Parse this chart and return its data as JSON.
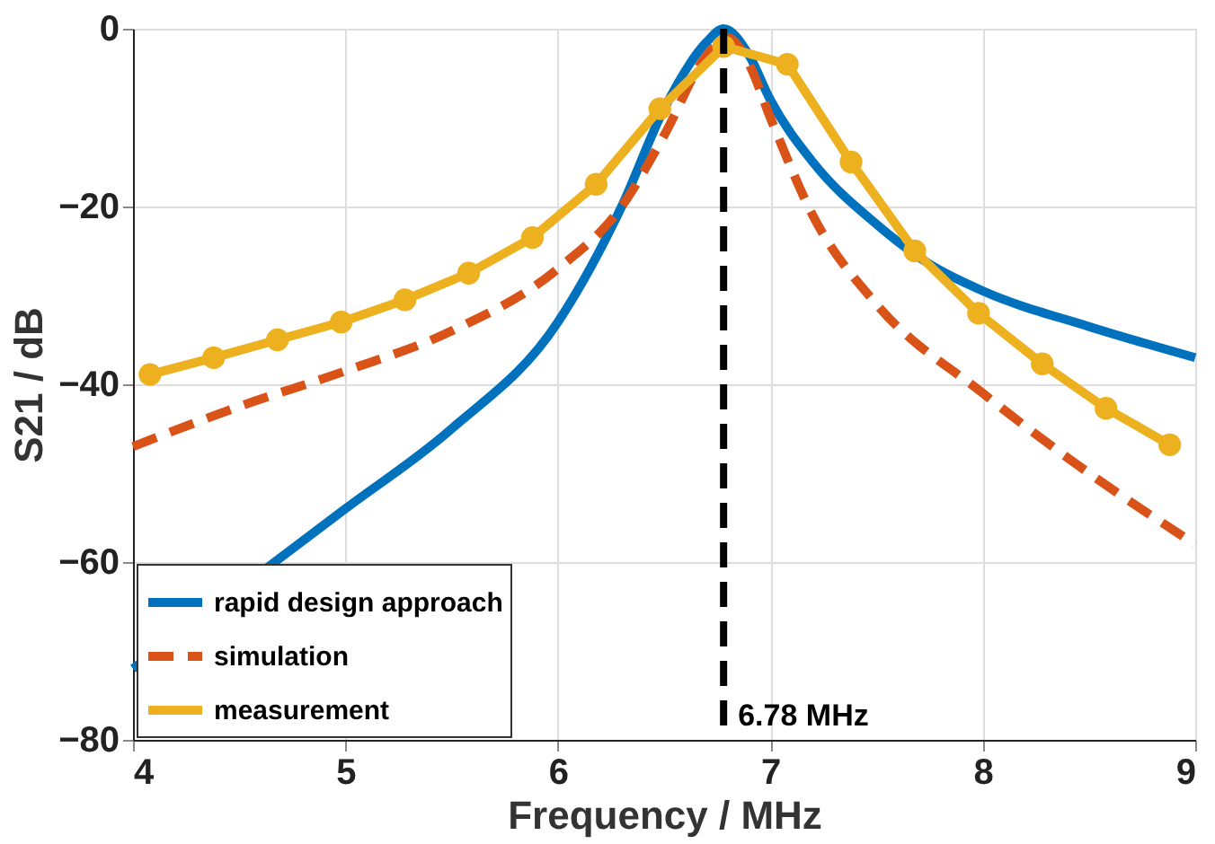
{
  "chart_data": {
    "type": "line",
    "xlabel": "Frequency / MHz",
    "ylabel": "S21 / dB",
    "xlim": [
      4,
      9
    ],
    "ylim": [
      -80,
      0
    ],
    "xticks": [
      4,
      5,
      6,
      7,
      8,
      9
    ],
    "yticks": [
      -80,
      -60,
      -40,
      -20,
      0
    ],
    "grid": true,
    "legend": "bottom left",
    "series": [
      {
        "name": "rapid design approach",
        "color": "#0072bd",
        "line_style": "solid",
        "marker": "none",
        "x": [
          4.0,
          5.0,
          5.5,
          6.0,
          6.3,
          6.5,
          6.7,
          6.78,
          6.9,
          7.0,
          7.2,
          7.5,
          7.75,
          8.0,
          8.5,
          9.0
        ],
        "values": [
          -72,
          -54,
          -45,
          -33,
          -20,
          -9,
          -1.5,
          0,
          -3,
          -8,
          -15,
          -22,
          -26.5,
          -29.5,
          -33.5,
          -37
        ]
      },
      {
        "name": "simulation",
        "color": "#d95319",
        "line_style": "dashed",
        "marker": "none",
        "x": [
          4.0,
          4.5,
          5.0,
          5.5,
          6.0,
          6.3,
          6.5,
          6.7,
          6.8,
          6.9,
          7.0,
          7.2,
          7.5,
          8.0,
          8.5,
          9.0
        ],
        "values": [
          -47,
          -42.5,
          -38.5,
          -34,
          -27,
          -20,
          -12,
          -3,
          -1,
          -4,
          -10,
          -21,
          -31,
          -41,
          -50,
          -58
        ]
      },
      {
        "name": "measurement",
        "color": "#edb120",
        "line_style": "solid",
        "marker": "circle",
        "x": [
          4.08,
          4.38,
          4.68,
          4.98,
          5.28,
          5.58,
          5.88,
          6.18,
          6.48,
          6.78,
          7.08,
          7.38,
          7.68,
          7.98,
          8.28,
          8.58,
          8.88
        ],
        "values": [
          -38.9,
          -37,
          -35,
          -33,
          -30.5,
          -27.5,
          -23.5,
          -17.5,
          -9,
          -2,
          -4,
          -15,
          -25,
          -32,
          -37.7,
          -42.7,
          -46.8
        ]
      }
    ],
    "ref_lines": [
      {
        "axis": "x",
        "value": 6.78,
        "label": "6.78 MHz",
        "color": "#000000",
        "line_style": "dashed"
      }
    ]
  }
}
